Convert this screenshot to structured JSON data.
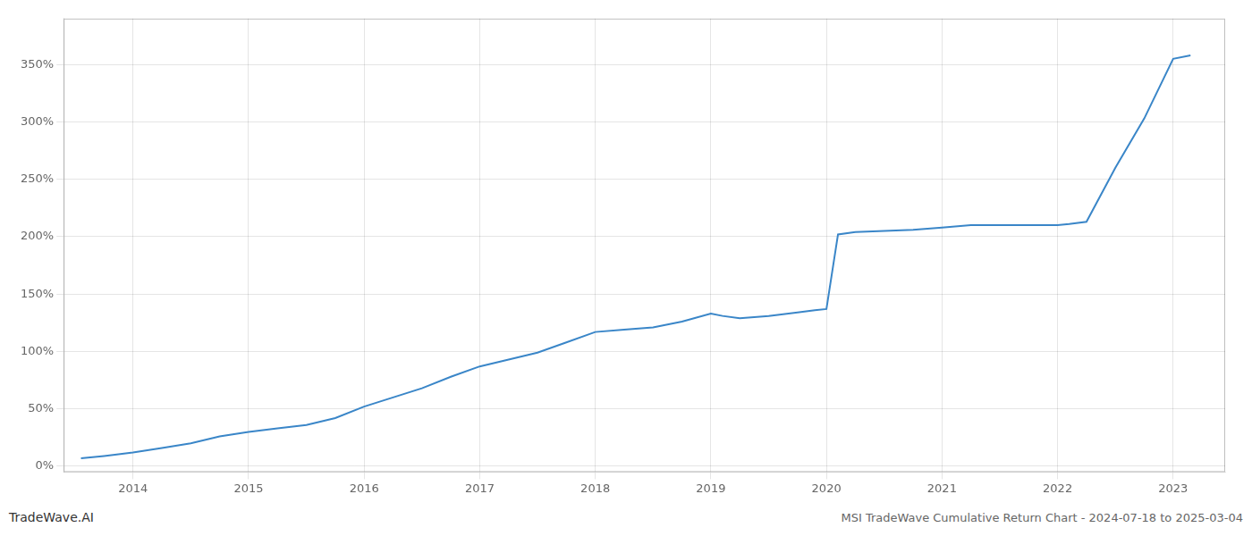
{
  "chart_data": {
    "type": "line",
    "title": "MSI TradeWave Cumulative Return Chart - 2024-07-18 to 2025-03-04",
    "annotations": [
      {
        "text": "TradeWave.AI"
      }
    ],
    "color": "#3a86c8",
    "x": [
      2013.55,
      2013.75,
      2014.0,
      2014.25,
      2014.5,
      2014.75,
      2015.0,
      2015.25,
      2015.5,
      2015.75,
      2016.0,
      2016.25,
      2016.5,
      2016.75,
      2017.0,
      2017.25,
      2017.5,
      2017.75,
      2018.0,
      2018.25,
      2018.5,
      2018.75,
      2019.0,
      2019.1,
      2019.25,
      2019.5,
      2019.75,
      2019.9,
      2020.0,
      2020.1,
      2020.25,
      2020.5,
      2020.75,
      2021.0,
      2021.25,
      2021.5,
      2021.75,
      2022.0,
      2022.1,
      2022.25,
      2022.5,
      2022.75,
      2023.0,
      2023.15
    ],
    "values": [
      7,
      9,
      12,
      16,
      20,
      26,
      30,
      33,
      36,
      42,
      52,
      60,
      68,
      78,
      87,
      93,
      99,
      108,
      117,
      119,
      121,
      126,
      133,
      131,
      129,
      131,
      134,
      136,
      137,
      202,
      204,
      205,
      206,
      208,
      210,
      210,
      210,
      210,
      211,
      213,
      260,
      303,
      355,
      358
    ],
    "xlim": [
      2013.4,
      2023.45
    ],
    "xticks": [
      2014,
      2015,
      2016,
      2017,
      2018,
      2019,
      2020,
      2021,
      2022,
      2023
    ],
    "ylim": [
      -5,
      390
    ],
    "yticks": [
      {
        "value": 0,
        "label": "0%"
      },
      {
        "value": 50,
        "label": "50%"
      },
      {
        "value": 100,
        "label": "100%"
      },
      {
        "value": 150,
        "label": "150%"
      },
      {
        "value": 200,
        "label": "200%"
      },
      {
        "value": 250,
        "label": "250%"
      },
      {
        "value": 300,
        "label": "300%"
      },
      {
        "value": 350,
        "label": "350%"
      }
    ],
    "grid": true
  }
}
